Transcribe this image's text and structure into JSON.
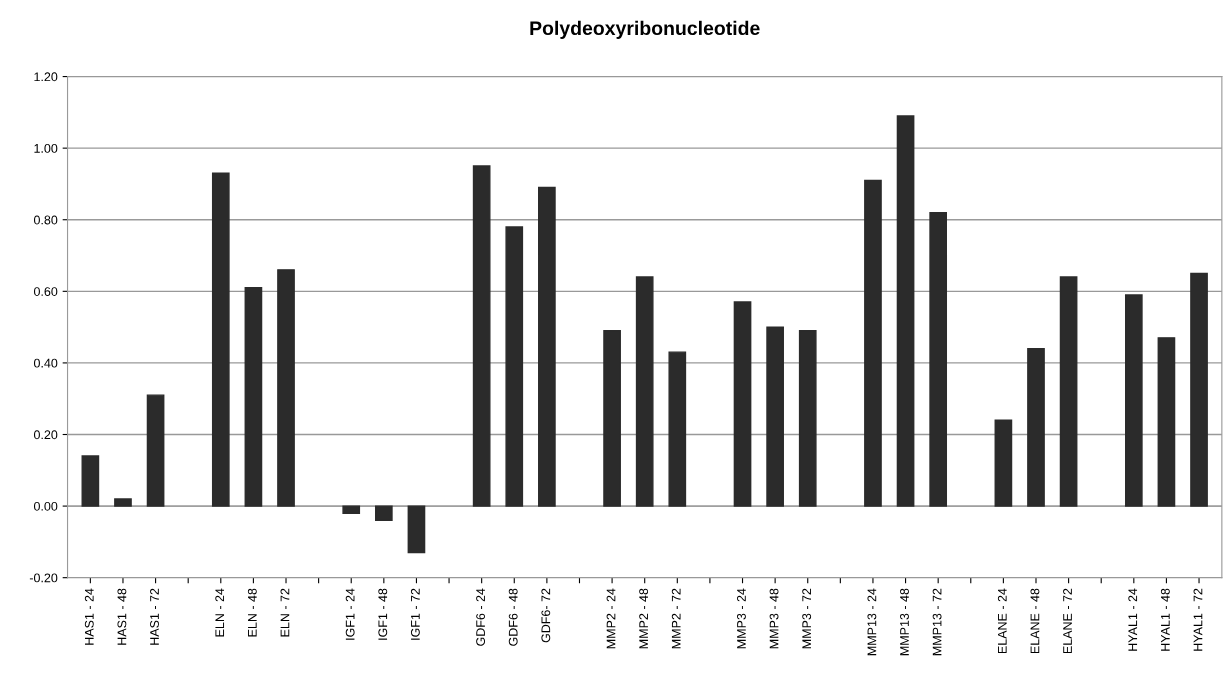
{
  "chart_data": {
    "type": "bar",
    "title": "Polydeoxyribonucleotide",
    "categories": [
      "HAS1 - 24",
      "HAS1 - 48",
      "HAS1 - 72",
      null,
      "ELN - 24",
      "ELN - 48",
      "ELN - 72",
      null,
      "IGF1 - 24",
      "IGF1 - 48",
      "IGF1 - 72",
      null,
      "GDF6 - 24",
      "GDF6 - 48",
      "GDF6- 72",
      null,
      "MMP2 - 24",
      "MMP2 - 48",
      "MMP2 - 72",
      null,
      "MMP3 - 24",
      "MMP3 - 48",
      "MMP3 - 72",
      null,
      "MMP13 - 24",
      "MMP13 - 48",
      "MMP13 - 72",
      null,
      "ELANE - 24",
      "ELANE - 48",
      "ELANE - 72",
      null,
      "HYAL1 - 24",
      "HYAL1 - 48",
      "HYAL1 - 72"
    ],
    "values": [
      0.14,
      0.02,
      0.31,
      null,
      0.93,
      0.61,
      0.66,
      null,
      -0.02,
      -0.04,
      -0.13,
      null,
      0.95,
      0.78,
      0.89,
      null,
      0.49,
      0.64,
      0.43,
      null,
      0.57,
      0.5,
      0.49,
      null,
      0.91,
      1.09,
      0.82,
      null,
      0.24,
      0.44,
      0.64,
      null,
      0.59,
      0.47,
      0.65
    ],
    "color": "#2b2b2b",
    "ylim": [
      -0.2,
      1.2
    ],
    "yticks": [
      {
        "value": -0.2,
        "label": "-0.20"
      },
      {
        "value": 0,
        "label": "0.00"
      },
      {
        "value": 0.2,
        "label": "0.20"
      },
      {
        "value": 0.4,
        "label": "0.40"
      },
      {
        "value": 0.6,
        "label": "0.60"
      },
      {
        "value": 0.8,
        "label": "0.80"
      },
      {
        "value": 1.0,
        "label": "1.00"
      },
      {
        "value": 1.2,
        "label": "1.20"
      }
    ],
    "grid": "y",
    "legend": false
  }
}
